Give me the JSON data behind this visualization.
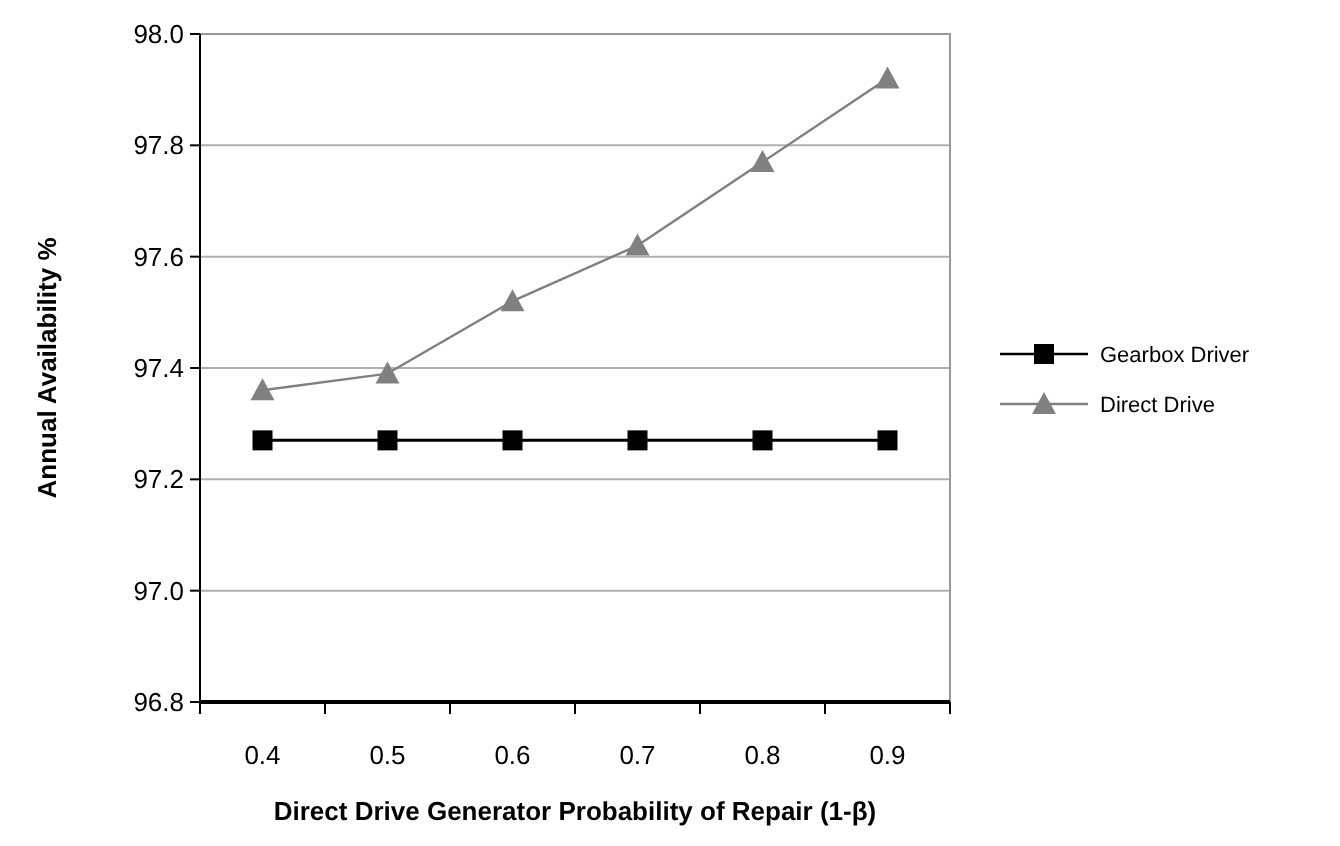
{
  "chart_data": {
    "type": "line",
    "xlabel": "Direct Drive Generator Probability of Repair  (1-β)",
    "ylabel": "Annual Availability %",
    "categories": [
      "0.4",
      "0.5",
      "0.6",
      "0.7",
      "0.8",
      "0.9"
    ],
    "ylim": [
      96.8,
      98.0
    ],
    "yticks": [
      {
        "value": 96.8,
        "label": "96.8"
      },
      {
        "value": 97.0,
        "label": "97.0"
      },
      {
        "value": 97.2,
        "label": "97.2"
      },
      {
        "value": 97.4,
        "label": "97.4"
      },
      {
        "value": 97.6,
        "label": "97.6"
      },
      {
        "value": 97.8,
        "label": "97.8"
      },
      {
        "value": 98.0,
        "label": "98.0"
      }
    ],
    "grid": "y",
    "legend": "right",
    "series": [
      {
        "name": "Gearbox Driver",
        "color": "#000000",
        "marker": "square",
        "values": [
          97.27,
          97.27,
          97.27,
          97.27,
          97.27,
          97.27
        ]
      },
      {
        "name": "Direct Drive",
        "color": "#808080",
        "marker": "triangle",
        "values": [
          97.36,
          97.39,
          97.52,
          97.62,
          97.77,
          97.92
        ]
      }
    ]
  }
}
